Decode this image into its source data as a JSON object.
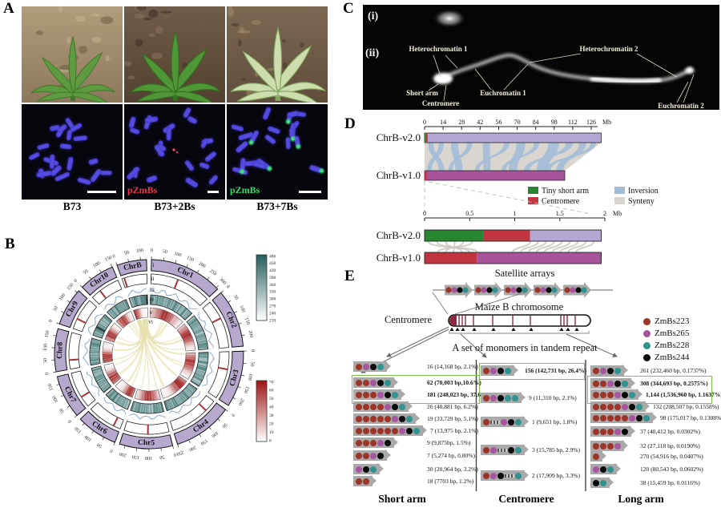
{
  "panels": {
    "a": "A",
    "b": "B",
    "c": "C",
    "d": "D",
    "e": "E"
  },
  "panel_a": {
    "genotype_labels": [
      "B73",
      "B73+2Bs",
      "B73+7Bs"
    ],
    "probe_labels": [
      {
        "text": "pZmBs",
        "color": "#e8394e",
        "panel_index": 1
      },
      {
        "text": "pZmBs",
        "color": "#3cd96a",
        "panel_index": 2
      }
    ]
  },
  "panel_c": {
    "sub_labels": [
      "(i)",
      "(ii)"
    ],
    "annotations": [
      "Heterochromatin 1",
      "Heterochromatin 2",
      "Short arm",
      "Centromere",
      "Euchromatin 1",
      "Euchromatin 2"
    ]
  },
  "chart_data": [
    {
      "type": "circos",
      "panel": "B",
      "track_labels": [
        "i",
        "ii",
        "iii",
        "iv",
        "v",
        "vi"
      ],
      "track_meaning": {
        "i": "ideogram",
        "ii": "centromere position",
        "iii": "line track",
        "iv": "heatmap teal",
        "v": "heatmap red",
        "vi": "links"
      },
      "tick_interval_mb": 50,
      "chromosomes": [
        {
          "name": "ChrB",
          "length_mb": 125,
          "centromere_mb": 12
        },
        {
          "name": "Chr1",
          "length_mb": 308,
          "centromere_mb": 135
        },
        {
          "name": "Chr2",
          "length_mb": 244,
          "centromere_mb": 95
        },
        {
          "name": "Chr3",
          "length_mb": 238,
          "centromere_mb": 88
        },
        {
          "name": "Chr4",
          "length_mb": 250,
          "centromere_mb": 60
        },
        {
          "name": "Chr5",
          "length_mb": 224,
          "centromere_mb": 105
        },
        {
          "name": "Chr6",
          "length_mb": 174,
          "centromere_mb": 35
        },
        {
          "name": "Chr7",
          "length_mb": 182,
          "centromere_mb": 55
        },
        {
          "name": "Chr8",
          "length_mb": 181,
          "centromere_mb": 45
        },
        {
          "name": "Chr9",
          "length_mb": 160,
          "centromere_mb": 52
        },
        {
          "name": "Chr10",
          "length_mb": 152,
          "centromere_mb": 50
        }
      ],
      "colorbar_teal": {
        "ticks": [
          480,
          450,
          420,
          390,
          360,
          330,
          300,
          270,
          240,
          210
        ]
      },
      "colorbar_red": {
        "ticks": [
          70,
          60,
          50,
          40,
          30,
          20,
          10,
          0
        ]
      },
      "link_color": "#e6e0ab",
      "ideogram_color": "#b7a8ce"
    },
    {
      "type": "synteny",
      "panel": "D",
      "axis_main": {
        "ticks_mb": [
          0,
          14,
          28,
          42,
          56,
          70,
          84,
          98,
          112,
          126
        ],
        "unit": "Mb"
      },
      "tracks_main": [
        {
          "name": "ChrB-v2.0",
          "length_mb": 133.5,
          "color": "#b5a7d3"
        },
        {
          "name": "ChrB-v1.0",
          "length_mb": 106,
          "color": "#a8549c"
        }
      ],
      "legend": [
        {
          "label": "Tiny short arm",
          "color": "#27862f"
        },
        {
          "label": "Centromere",
          "color": "#c13540"
        },
        {
          "label": "Inversion",
          "color": "#a3bdd8"
        },
        {
          "label": "Synteny",
          "color": "#d7d3ce"
        }
      ],
      "axis_zoom": {
        "ticks_mb": [
          0,
          0.5,
          1,
          1.5,
          2
        ],
        "unit": "Mb"
      },
      "tracks_zoom": [
        {
          "name": "ChrB-v2.0",
          "segments": [
            {
              "label": "Tiny short arm",
              "start_mb": 0,
              "end_mb": 0.65,
              "color": "#27862f"
            },
            {
              "label": "Centromere",
              "start_mb": 0.65,
              "end_mb": 1.17,
              "color": "#c13540"
            },
            {
              "label": "Synteny",
              "start_mb": 1.17,
              "end_mb": 1.96,
              "color": "#b5a7d3"
            }
          ]
        },
        {
          "name": "ChrB-v1.0",
          "segments": [
            {
              "label": "Centromere",
              "start_mb": 0,
              "end_mb": 0.58,
              "color": "#c13540"
            },
            {
              "label": "Synteny",
              "start_mb": 0.58,
              "end_mb": 1.96,
              "color": "#a8549c"
            }
          ]
        }
      ]
    }
  ],
  "panel_e": {
    "titles": {
      "satellite": "Satellite arrays",
      "chromosome": "Maize B chromosome",
      "centromere": "Centromere",
      "monomers": "A set of monomers in tandem repeat"
    },
    "legend": [
      {
        "name": "ZmBs223",
        "color": "#9e3428"
      },
      {
        "name": "ZmBs265",
        "color": "#a855a0"
      },
      {
        "name": "ZmBs228",
        "color": "#2f9390"
      },
      {
        "name": "ZmBs244",
        "color": "#0a0a0a"
      }
    ],
    "dot_colors": {
      "R": "#9e3428",
      "M": "#a855a0",
      "T": "#2f9390",
      "K": "#0a0a0a"
    },
    "columns": [
      {
        "title": "Short arm",
        "highlight_rows": [
          1,
          2
        ],
        "rows": [
          {
            "pattern": [
              "R",
              "M",
              "K",
              "T"
            ],
            "label": "16 (14,168 bp, 2.1%)",
            "bold": false
          },
          {
            "pattern": [
              "R",
              "R",
              "M",
              "K",
              "T"
            ],
            "label": "62 (70,003 bp,10.6%)",
            "bold": true
          },
          {
            "pattern": [
              "R",
              "R",
              "R",
              "M",
              "K",
              "T"
            ],
            "label": "181 (248,023 bp, 37.6%)",
            "bold": true
          },
          {
            "pattern": [
              "R",
              "R",
              "R",
              "R",
              "M",
              "K",
              "T"
            ],
            "label": "26 (40,881 bp, 6.2%)",
            "bold": false
          },
          {
            "pattern": [
              "R",
              "R",
              "R",
              "R",
              "R",
              "M",
              "K",
              "T"
            ],
            "label": "19 (33,729 bp, 5.1%)",
            "bold": false
          },
          {
            "pattern": [
              "R",
              "R",
              "R",
              "R",
              "R",
              "R",
              "M",
              "K",
              "T"
            ],
            "label": "7 (13,975 bp, 2.1%)",
            "bold": false
          },
          {
            "pattern": [
              "R",
              "R",
              "R",
              "M",
              "K"
            ],
            "label": "9 (9,875bp, 1.5%)",
            "bold": false
          },
          {
            "pattern": [
              "R",
              "R",
              "M",
              "K"
            ],
            "label": "7 (5,274 bp, 0.80%)",
            "bold": false
          },
          {
            "pattern": [
              "M",
              "K",
              "T"
            ],
            "label": "30 (20,964 bp, 3.2%)",
            "bold": false
          },
          {
            "pattern": [
              "R",
              "R"
            ],
            "label": "18 (7703 bp, 1.2%)",
            "bold": false
          }
        ]
      },
      {
        "title": "Centromere",
        "highlight_rows": [
          0
        ],
        "rows": [
          {
            "pattern": [
              "R",
              "M",
              "K",
              "T"
            ],
            "label": "156 (142,731 bp, 26.4%)",
            "bold": true
          },
          {
            "pattern": [
              "R",
              "M",
              "K",
              "T",
              "T"
            ],
            "label": "9 (11,310 bp, 2.1%)",
            "bold": false
          },
          {
            "pattern": [
              "R",
              "gap",
              "M",
              "K",
              "T"
            ],
            "label": "1 (9,651 bp, 1.8%)",
            "bold": false
          },
          {
            "pattern": [
              "R",
              "M",
              "gap",
              "K",
              "T"
            ],
            "label": "3 (15,785 bp, 2.9%)",
            "bold": false
          },
          {
            "pattern": [
              "R",
              "M",
              "K",
              "gap",
              "T"
            ],
            "label": "2 (17,909 bp, 3.3%)",
            "bold": false
          }
        ]
      },
      {
        "title": "Long arm",
        "highlight_rows": [
          1,
          2
        ],
        "rows": [
          {
            "pattern": [
              "R",
              "M",
              "K",
              "T"
            ],
            "label": "261 (232,460 bp, 0.1737%)",
            "bold": false
          },
          {
            "pattern": [
              "R",
              "R",
              "M",
              "K",
              "T"
            ],
            "label": "308 (344,693 bp, 0.2575%)",
            "bold": true
          },
          {
            "pattern": [
              "R",
              "R",
              "R",
              "M",
              "K",
              "T"
            ],
            "label": "1,144 (1,536,960 bp, 1.1637%)",
            "bold": true
          },
          {
            "pattern": [
              "R",
              "R",
              "R",
              "R",
              "M",
              "K",
              "T"
            ],
            "label": "132 (208,507 bp, 0.1558%)",
            "bold": false
          },
          {
            "pattern": [
              "R",
              "R",
              "R",
              "R",
              "R",
              "M",
              "K",
              "T"
            ],
            "label": "98 (175,017 bp, 0.1308%)",
            "bold": false
          },
          {
            "pattern": [
              "R",
              "R",
              "R",
              "M",
              "K"
            ],
            "label": "37 (40,412 bp, 0.0302%)",
            "bold": false
          },
          {
            "pattern": [
              "R",
              "R",
              "R",
              "M"
            ],
            "label": "32 (27,118 bp, 0.0190%)",
            "bold": false
          },
          {
            "pattern": [
              "R"
            ],
            "label": "270 (54,916 bp, 0.0407%)",
            "bold": false
          },
          {
            "pattern": [
              "M",
              "K",
              "T"
            ],
            "label": "120 (80,543 bp, 0.0602%)",
            "bold": false
          },
          {
            "pattern": [
              "K",
              "T"
            ],
            "label": "38 (15,459 bp, 0.0116%)",
            "bold": false
          }
        ]
      }
    ]
  }
}
